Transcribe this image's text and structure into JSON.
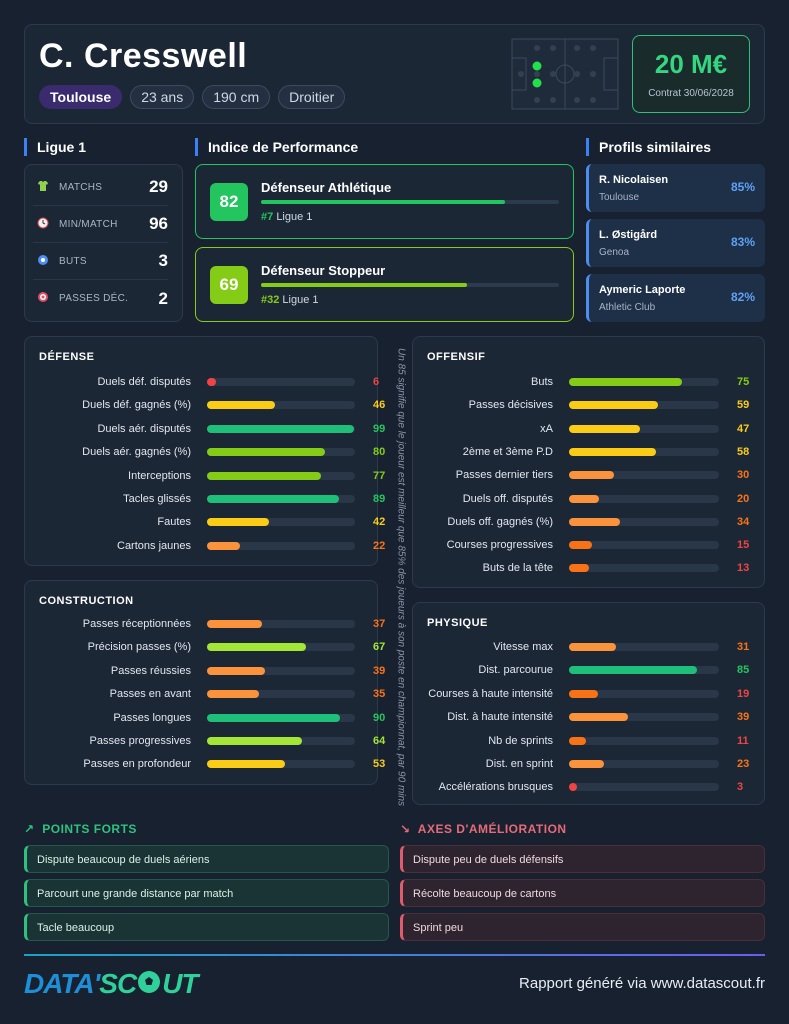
{
  "player": {
    "name": "C. Cresswell",
    "club": "Toulouse",
    "age": "23 ans",
    "height": "190 cm",
    "foot": "Droitier",
    "value": "20 M€",
    "contract": "Contrat 30/06/2028"
  },
  "league": {
    "title": "Ligue 1",
    "stats": [
      {
        "label": "MATCHS",
        "value": "29",
        "icon": "shirt-icon"
      },
      {
        "label": "MIN/MATCH",
        "value": "96",
        "icon": "clock-icon"
      },
      {
        "label": "BUTS",
        "value": "3",
        "icon": "ball-icon"
      },
      {
        "label": "PASSES DÉC.",
        "value": "2",
        "icon": "target-icon"
      }
    ]
  },
  "performance": {
    "title": "Indice de Performance",
    "items": [
      {
        "score": "82",
        "role": "Défenseur Athlétique",
        "rank": "#7",
        "league": "Ligue 1",
        "level": 82,
        "color": "#22c55e"
      },
      {
        "score": "69",
        "role": "Défenseur Stoppeur",
        "rank": "#32",
        "league": "Ligue 1",
        "level": 69,
        "color": "#84cc16"
      }
    ]
  },
  "similar": {
    "title": "Profils similaires",
    "items": [
      {
        "name": "R. Nicolaisen",
        "club": "Toulouse",
        "pct": "85%"
      },
      {
        "name": "L. Østigård",
        "club": "Genoa",
        "pct": "83%"
      },
      {
        "name": "Aymeric Laporte",
        "club": "Athletic Club",
        "pct": "82%"
      }
    ]
  },
  "defense": {
    "title": "DÉFENSE",
    "metrics": [
      {
        "label": "Duels déf. disputés",
        "value": 6
      },
      {
        "label": "Duels déf. gagnés (%)",
        "value": 46
      },
      {
        "label": "Duels aér. disputés",
        "value": 99
      },
      {
        "label": "Duels aér. gagnés (%)",
        "value": 80
      },
      {
        "label": "Interceptions",
        "value": 77
      },
      {
        "label": "Tacles glissés",
        "value": 89
      },
      {
        "label": "Fautes",
        "value": 42
      },
      {
        "label": "Cartons jaunes",
        "value": 22
      }
    ]
  },
  "construction": {
    "title": "CONSTRUCTION",
    "metrics": [
      {
        "label": "Passes réceptionnées",
        "value": 37
      },
      {
        "label": "Précision passes (%)",
        "value": 67
      },
      {
        "label": "Passes réussies",
        "value": 39
      },
      {
        "label": "Passes en avant",
        "value": 35
      },
      {
        "label": "Passes longues",
        "value": 90
      },
      {
        "label": "Passes progressives",
        "value": 64
      },
      {
        "label": "Passes en profondeur",
        "value": 53
      }
    ]
  },
  "offensif": {
    "title": "OFFENSIF",
    "metrics": [
      {
        "label": "Buts",
        "value": 75
      },
      {
        "label": "Passes décisives",
        "value": 59
      },
      {
        "label": "xA",
        "value": 47
      },
      {
        "label": "2ème et 3ème P.D",
        "value": 58
      },
      {
        "label": "Passes dernier tiers",
        "value": 30
      },
      {
        "label": "Duels off. disputés",
        "value": 20
      },
      {
        "label": "Duels off. gagnés (%)",
        "value": 34
      },
      {
        "label": "Courses progressives",
        "value": 15
      },
      {
        "label": "Buts de la tête",
        "value": 13
      }
    ]
  },
  "physique": {
    "title": "PHYSIQUE",
    "metrics": [
      {
        "label": "Vitesse max",
        "value": 31
      },
      {
        "label": "Dist. parcourue",
        "value": 85
      },
      {
        "label": "Courses à haute intensité",
        "value": 19
      },
      {
        "label": "Dist. à haute intensité",
        "value": 39
      },
      {
        "label": "Nb de sprints",
        "value": 11
      },
      {
        "label": "Dist. en sprint",
        "value": 23
      },
      {
        "label": "Accélérations brusques",
        "value": 3
      }
    ]
  },
  "note": "Un 85 signifie que le joueur est meilleur que 85% des joueurs à son poste en championnat, par 90 mins",
  "strengths": {
    "title": "POINTS FORTS",
    "items": [
      "Dispute beaucoup de duels aériens",
      "Parcourt une grande distance par match",
      "Tacle beaucoup"
    ]
  },
  "weaknesses": {
    "title": "AXES D'AMÉLIORATION",
    "items": [
      "Dispute peu de duels défensifs",
      "Récolte beaucoup de cartons",
      "Sprint peu"
    ]
  },
  "footer": {
    "logo_part1": "DATA'",
    "logo_part2": "SC",
    "logo_part3": "UT",
    "text": "Rapport généré via www.datascout.fr"
  },
  "colors": {
    "accent_blue": "#3b82f6",
    "value_green": "#34d67f",
    "good": "#2ec27e",
    "bad": "#e05b6b"
  }
}
